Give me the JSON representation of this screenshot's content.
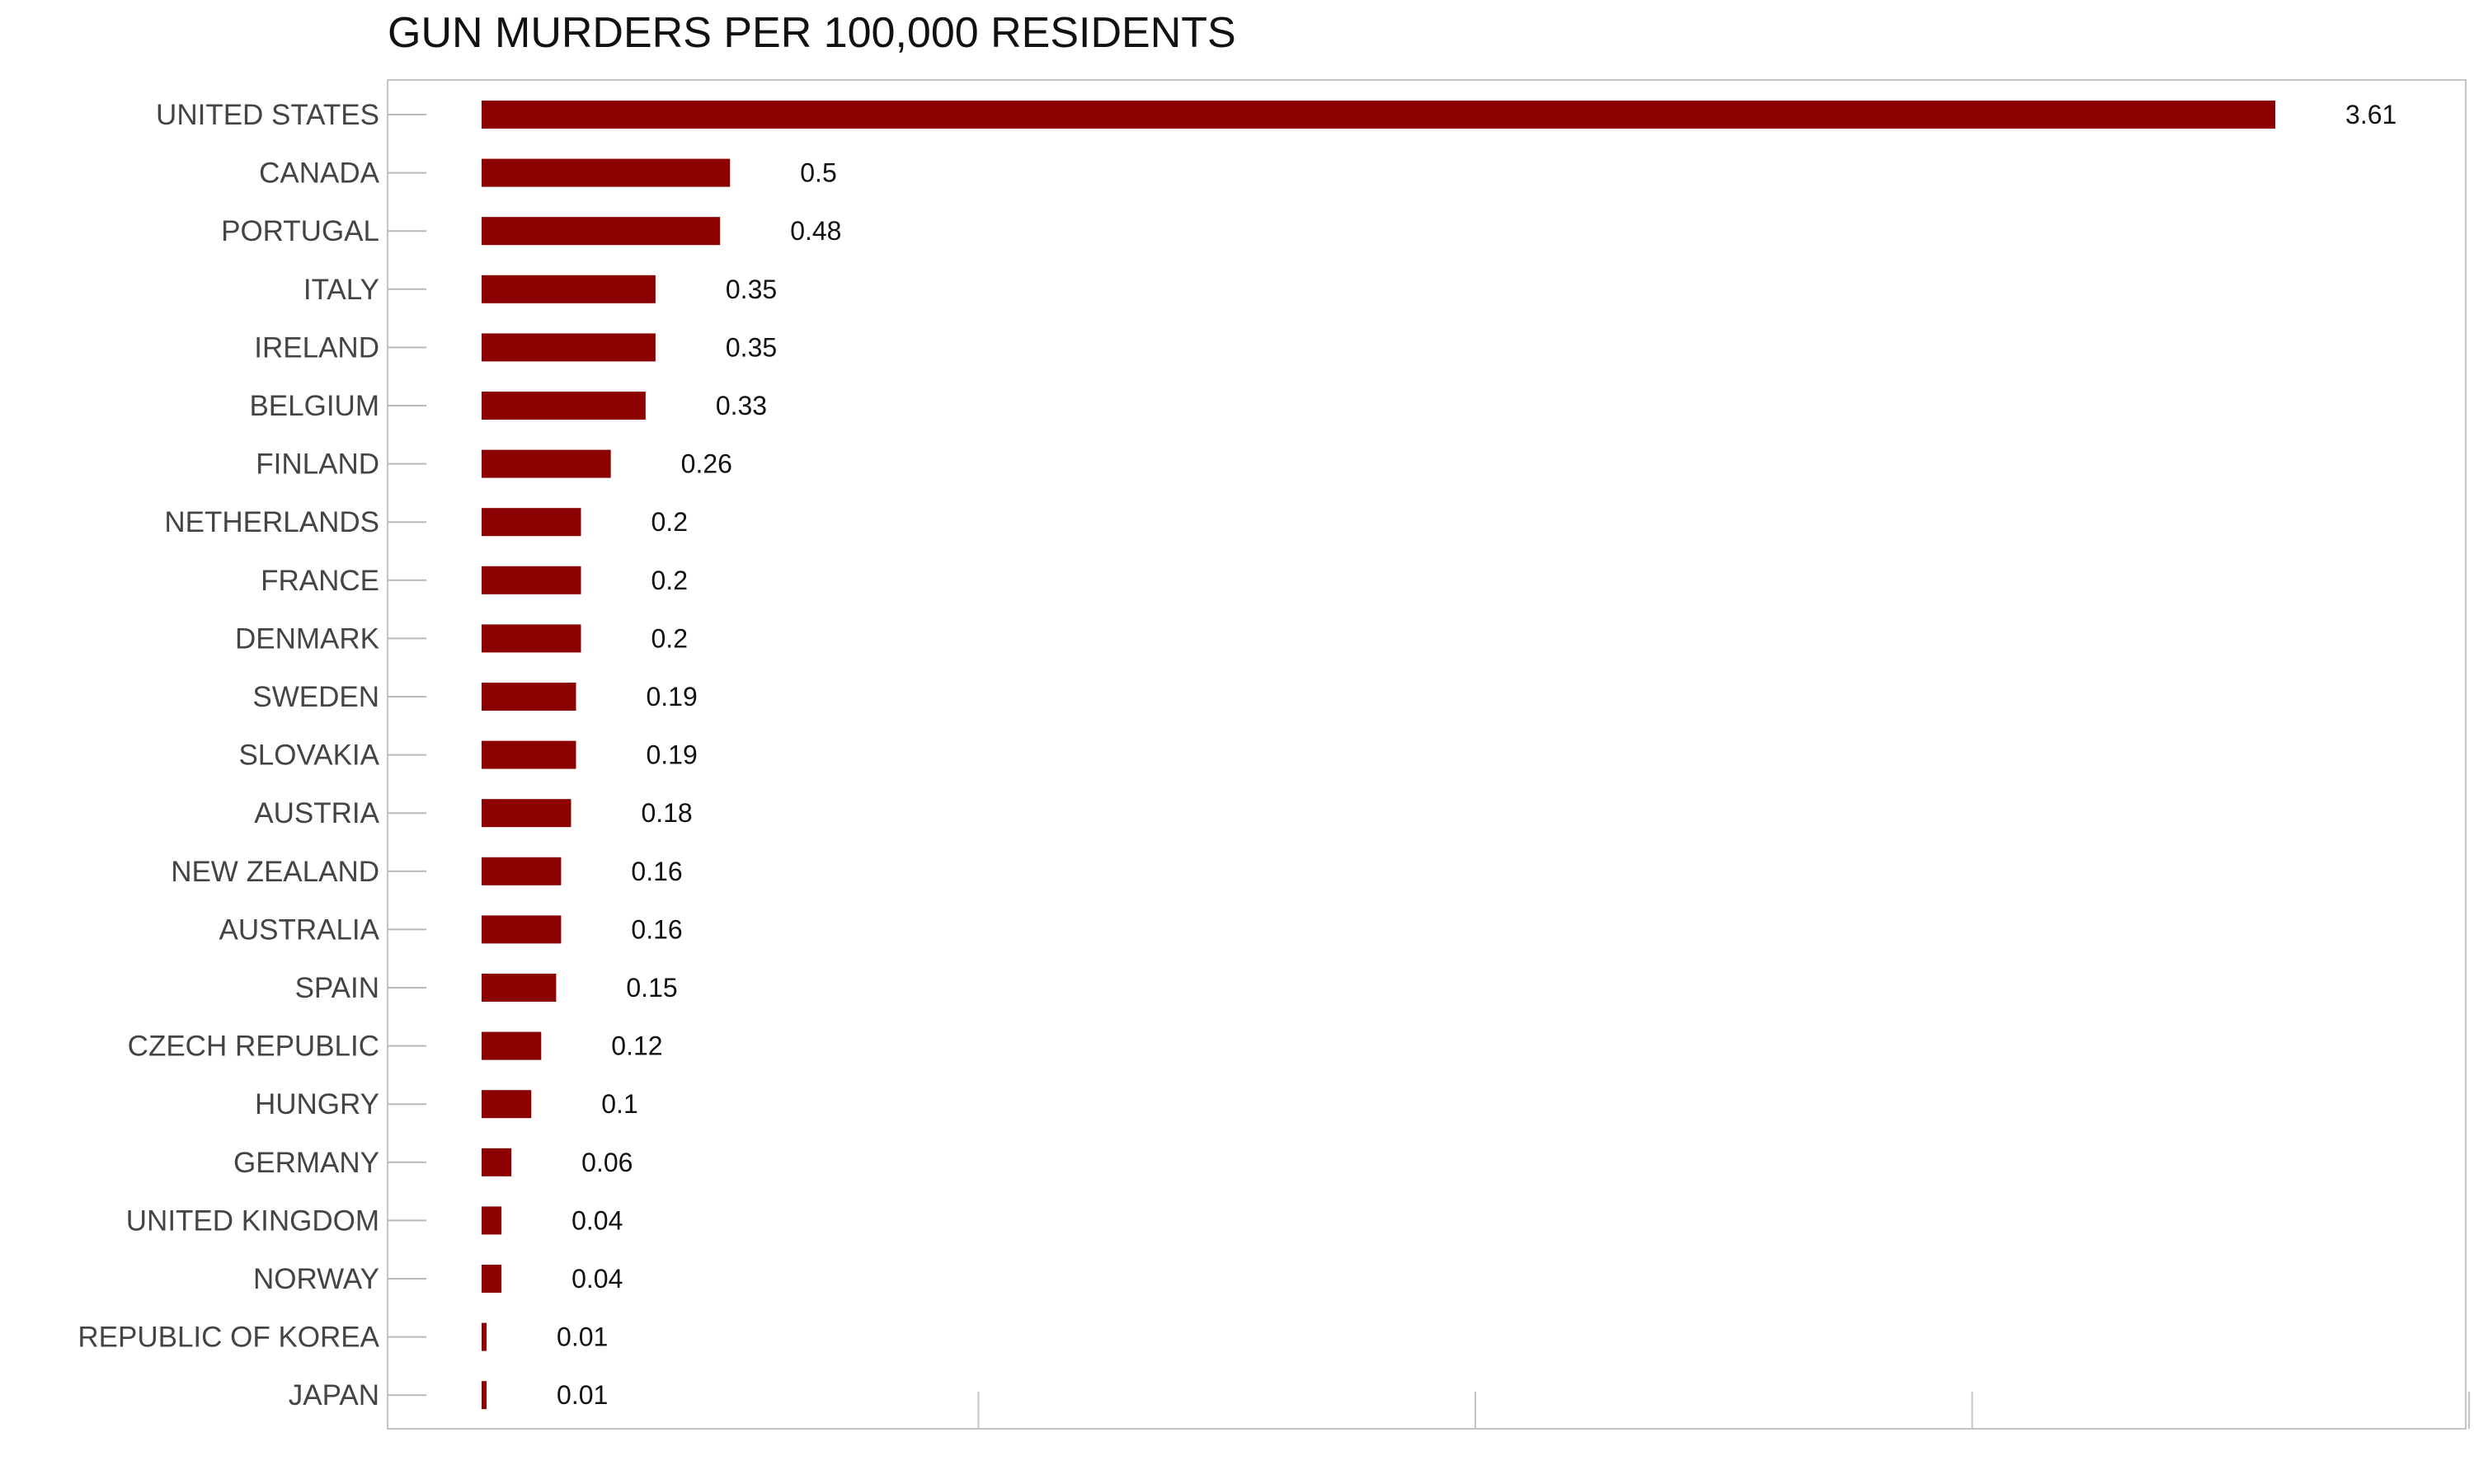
{
  "chart_data": {
    "type": "bar",
    "orientation": "horizontal",
    "title": "GUN MURDERS PER 100,000 RESIDENTS",
    "xlabel": "",
    "ylabel": "",
    "categories": [
      "UNITED STATES",
      "CANADA",
      "PORTUGAL",
      "ITALY",
      "IRELAND",
      "BELGIUM",
      "FINLAND",
      "NETHERLANDS",
      "FRANCE",
      "DENMARK",
      "SWEDEN",
      "SLOVAKIA",
      "AUSTRIA",
      "NEW ZEALAND",
      "AUSTRALIA",
      "SPAIN",
      "CZECH REPUBLIC",
      "HUNGRY",
      "GERMANY",
      "UNITED KINGDOM",
      "NORWAY",
      "REPUBLIC OF KOREA",
      "JAPAN"
    ],
    "values": [
      3.61,
      0.5,
      0.48,
      0.35,
      0.35,
      0.33,
      0.26,
      0.2,
      0.2,
      0.2,
      0.19,
      0.19,
      0.18,
      0.16,
      0.16,
      0.15,
      0.12,
      0.1,
      0.06,
      0.04,
      0.04,
      0.01,
      0.01
    ],
    "xlim": [
      0,
      4
    ],
    "x_gridlines": [
      1,
      2,
      3,
      4
    ],
    "grid": true,
    "legend": "none",
    "bar_color": "#8B0000",
    "data_labels": true
  }
}
